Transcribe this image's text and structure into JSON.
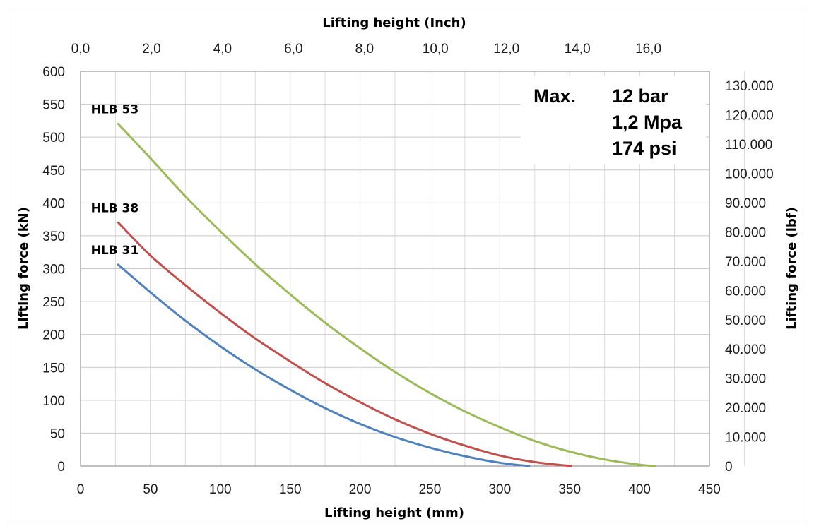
{
  "chart_data": {
    "type": "line",
    "xlabel": "Lifting height (mm)",
    "x2label": "Lifting height (Inch)",
    "ylabel": "Lifting force (kN)",
    "y2label": "Lifting force (lbf)",
    "xlim": [
      0,
      450
    ],
    "x_ticks": [
      "0",
      "50",
      "100",
      "150",
      "200",
      "250",
      "300",
      "350",
      "400",
      "450"
    ],
    "x2lim": [
      0,
      17.72
    ],
    "x2_ticks": [
      "0,0",
      "2,0",
      "4,0",
      "6,0",
      "8,0",
      "10,0",
      "12,0",
      "14,0",
      "16,0"
    ],
    "ylim": [
      0,
      600
    ],
    "y_ticks": [
      "0",
      "50",
      "100",
      "150",
      "200",
      "250",
      "300",
      "350",
      "400",
      "450",
      "500",
      "550",
      "600"
    ],
    "y2lim": [
      0,
      134884
    ],
    "y2_ticks": [
      "0",
      "10.000",
      "20.000",
      "30.000",
      "40.000",
      "50.000",
      "60.000",
      "70.000",
      "80.000",
      "90.000",
      "100.000",
      "110.000",
      "120.000",
      "130.000"
    ],
    "grid": true,
    "series": [
      {
        "name": "HLB 53",
        "color": "#9bbb59",
        "x": [
          27,
          50,
          75,
          100,
          125,
          150,
          175,
          200,
          225,
          250,
          275,
          300,
          325,
          350,
          375,
          400,
          411
        ],
        "y": [
          520,
          468,
          410,
          357,
          307,
          261,
          218,
          179,
          143,
          111,
          83,
          59,
          38,
          22,
          10,
          2,
          0
        ]
      },
      {
        "name": "HLB 38",
        "color": "#c0504d",
        "x": [
          27,
          50,
          75,
          100,
          125,
          150,
          175,
          200,
          225,
          250,
          275,
          300,
          325,
          351
        ],
        "y": [
          370,
          320,
          275,
          233,
          194,
          159,
          126,
          97,
          71,
          49,
          31,
          16,
          6,
          0
        ]
      },
      {
        "name": "HLB 31",
        "color": "#4f81bd",
        "x": [
          27,
          50,
          75,
          100,
          125,
          150,
          175,
          200,
          225,
          250,
          275,
          300,
          321
        ],
        "y": [
          306,
          264,
          221,
          182,
          147,
          116,
          88,
          64,
          44,
          28,
          15,
          5,
          0
        ]
      }
    ],
    "annotation": {
      "label": "Max.",
      "lines": [
        "12 bar",
        "1,2 Mpa",
        "174 psi"
      ]
    }
  }
}
